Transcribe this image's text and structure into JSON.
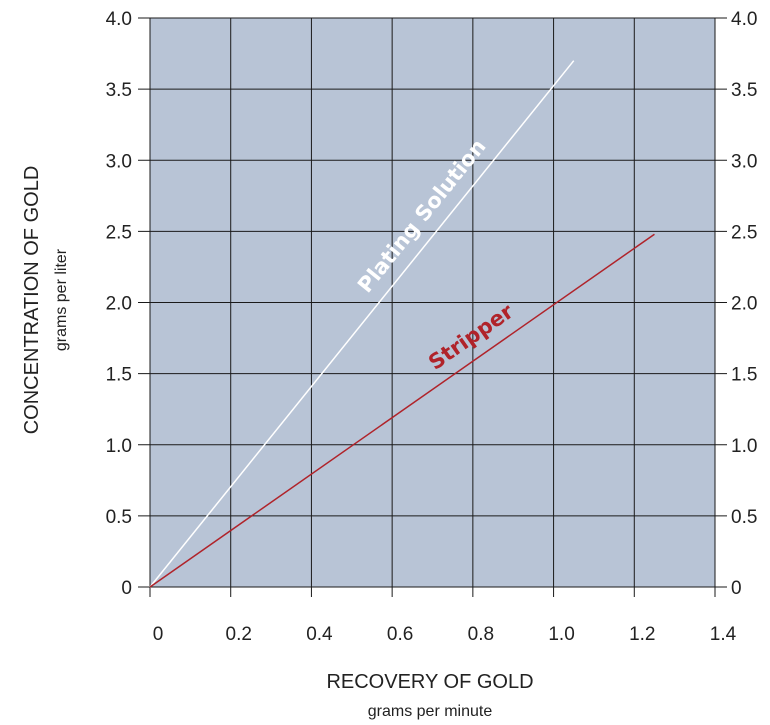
{
  "chart_data": {
    "type": "line",
    "xlabel": "RECOVERY OF GOLD",
    "xlabel_sub": "grams per minute",
    "ylabel": "CONCENTRATION OF GOLD",
    "ylabel_sub": "grams per liter",
    "xlim": [
      0,
      1.4
    ],
    "ylim": [
      0,
      4.0
    ],
    "x_ticks": [
      0,
      0.2,
      0.4,
      0.6,
      0.8,
      1.0,
      1.2,
      1.4
    ],
    "x_tick_labels": [
      "0",
      "0.2",
      "0.4",
      "0.6",
      "0.8",
      "1.0",
      "1.2",
      "1.4"
    ],
    "y_ticks": [
      0,
      0.5,
      1.0,
      1.5,
      2.0,
      2.5,
      3.0,
      3.5,
      4.0
    ],
    "y_tick_labels": [
      "0",
      "0.5",
      "1.0",
      "1.5",
      "2.0",
      "2.5",
      "3.0",
      "3.5",
      "4.0"
    ],
    "grid": true,
    "plot_background": "#b8c4d6",
    "grid_color": "#1a1a1a",
    "series": [
      {
        "name": "Plating Solution",
        "color": "#ffffff",
        "x": [
          0,
          1.05
        ],
        "y": [
          0,
          3.7
        ]
      },
      {
        "name": "Stripper",
        "color": "#b0232a",
        "x": [
          0,
          1.25
        ],
        "y": [
          0,
          2.48
        ]
      }
    ]
  }
}
